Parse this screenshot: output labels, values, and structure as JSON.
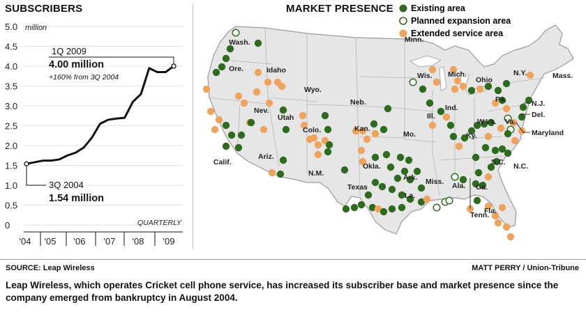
{
  "subscribers_title": "SUBSCRIBERS",
  "market_title": "MARKET PRESENCE",
  "legend": {
    "existing": "Existing area",
    "planned": "Planned expansion area",
    "extended": "Extended service area"
  },
  "colors": {
    "existing": "#2e6b1f",
    "planned_stroke": "#2e6b1f",
    "extended": "#f0a35c",
    "land": "#e6e6e6",
    "line": "#111111"
  },
  "source": "SOURCE: Leap Wireless",
  "credit": "MATT PERRY / Union-Tribune",
  "caption": "Leap Wireless, which operates Cricket cell phone service, has increased its subscriber base and market presence since the company emerged from bankruptcy in August 2004.",
  "chart_data": {
    "type": "line",
    "ylabel_unit": "million",
    "ylim": [
      0,
      5.0
    ],
    "yticks": [
      "0",
      "0.5",
      "1.0",
      "1.5",
      "2.0",
      "2.5",
      "3.0",
      "3.5",
      "4.0",
      "4.5",
      "5.0"
    ],
    "xticks": [
      "'04",
      "'05",
      "'06",
      "'07",
      "'08",
      "'09"
    ],
    "x_note": "QUARTERLY",
    "series": [
      {
        "x": [
          "3Q 2004",
          "4Q 2004",
          "1Q 2005",
          "2Q 2005",
          "3Q 2005",
          "4Q 2005",
          "1Q 2006",
          "2Q 2006",
          "3Q 2006",
          "4Q 2006",
          "1Q 2007",
          "2Q 2007",
          "3Q 2007",
          "4Q 2007",
          "1Q 2008",
          "2Q 2008",
          "3Q 2008",
          "4Q 2008",
          "1Q 2009"
        ],
        "values": [
          1.54,
          1.58,
          1.62,
          1.62,
          1.65,
          1.75,
          1.82,
          1.95,
          2.2,
          2.55,
          2.65,
          2.68,
          2.7,
          3.1,
          3.3,
          3.95,
          3.85,
          3.85,
          4.0
        ]
      }
    ],
    "annotations": {
      "end_label": "1Q 2009",
      "end_value": "4.00 million",
      "end_note": "+160% from 3Q 2004",
      "start_label": "3Q 2004",
      "start_value": "1.54 million"
    }
  },
  "map": {
    "state_labels": [
      {
        "id": "wash",
        "text": "Wash."
      },
      {
        "id": "ore",
        "text": "Ore."
      },
      {
        "id": "idaho",
        "text": "Idaho"
      },
      {
        "id": "nev",
        "text": "Nev."
      },
      {
        "id": "calif",
        "text": "Calif."
      },
      {
        "id": "utah",
        "text": "Utah"
      },
      {
        "id": "ariz",
        "text": "Ariz."
      },
      {
        "id": "nm",
        "text": "N.M."
      },
      {
        "id": "colo",
        "text": "Colo."
      },
      {
        "id": "wyo",
        "text": "Wyo."
      },
      {
        "id": "neb",
        "text": "Neb."
      },
      {
        "id": "kan",
        "text": "Kan."
      },
      {
        "id": "okla",
        "text": "Okla."
      },
      {
        "id": "texas",
        "text": "Texas"
      },
      {
        "id": "minn",
        "text": "Minn."
      },
      {
        "id": "wis",
        "text": "Wis."
      },
      {
        "id": "mo",
        "text": "Mo."
      },
      {
        "id": "ark",
        "text": "Ark."
      },
      {
        "id": "la",
        "text": "La."
      },
      {
        "id": "miss",
        "text": "Miss."
      },
      {
        "id": "ala",
        "text": "Ala."
      },
      {
        "id": "ill",
        "text": "Ill."
      },
      {
        "id": "ind",
        "text": "Ind."
      },
      {
        "id": "mich",
        "text": "Mich."
      },
      {
        "id": "ohio",
        "text": "Ohio"
      },
      {
        "id": "ky",
        "text": "Ky."
      },
      {
        "id": "tenn",
        "text": "Tenn."
      },
      {
        "id": "ga",
        "text": "Ga."
      },
      {
        "id": "fla",
        "text": "Fla."
      },
      {
        "id": "sc",
        "text": "S.C."
      },
      {
        "id": "nc",
        "text": "N.C."
      },
      {
        "id": "va",
        "text": "Va."
      },
      {
        "id": "wva",
        "text": "W.Va."
      },
      {
        "id": "pa",
        "text": "Pa."
      },
      {
        "id": "ny",
        "text": "N.Y."
      },
      {
        "id": "mass",
        "text": "Mass."
      },
      {
        "id": "nj",
        "text": "N.J."
      },
      {
        "id": "del",
        "text": "Del."
      },
      {
        "id": "maryland",
        "text": "Maryland"
      }
    ]
  }
}
